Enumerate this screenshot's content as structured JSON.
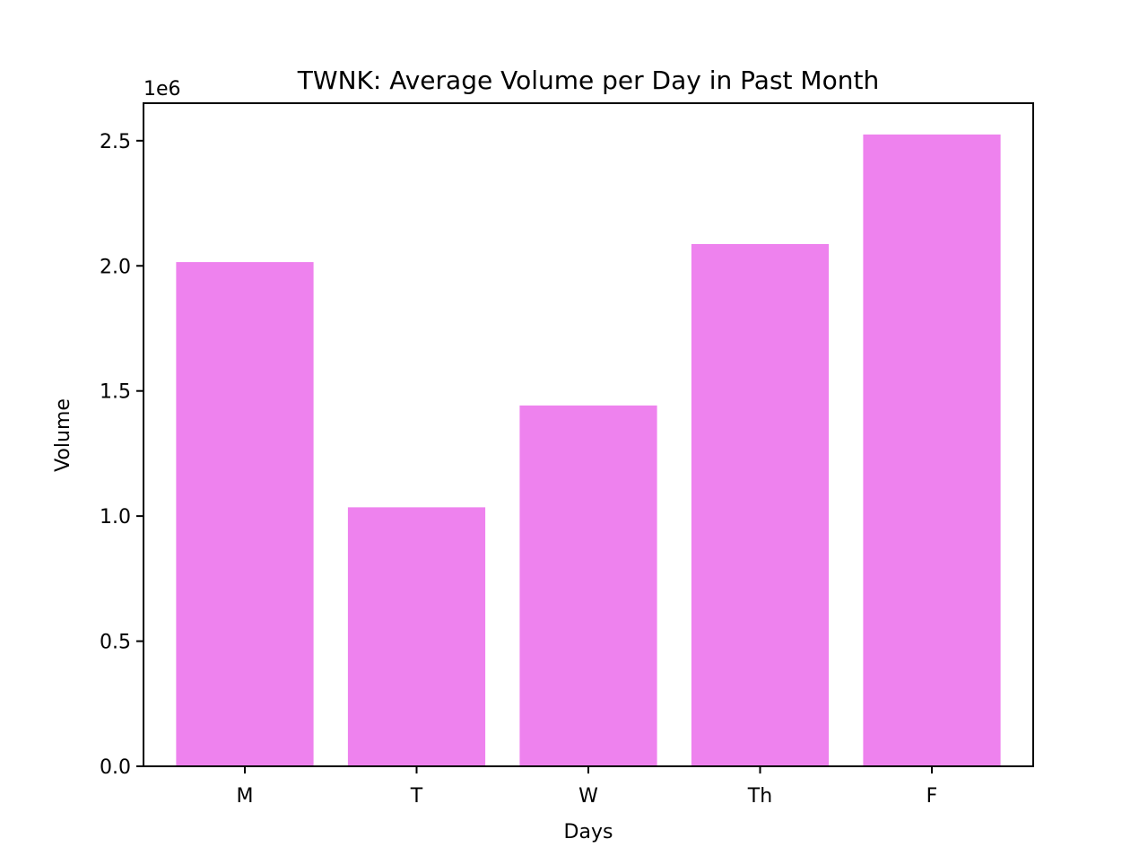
{
  "chart_data": {
    "type": "bar",
    "title": "TWNK: Average Volume per Day in Past Month",
    "xlabel": "Days",
    "ylabel": "Volume",
    "y_offset_label": "1e6",
    "categories": [
      "M",
      "T",
      "W",
      "Th",
      "F"
    ],
    "values": [
      2015000,
      1035000,
      1442000,
      2087000,
      2525000
    ],
    "ylim": [
      0,
      2650000
    ],
    "yticks": [
      0,
      500000,
      1000000,
      1500000,
      2000000,
      2500000
    ],
    "ytick_labels": [
      "0.0",
      "0.5",
      "1.0",
      "1.5",
      "2.0",
      "2.5"
    ],
    "bar_color": "#ee82ee",
    "grid": false,
    "legend": false
  }
}
